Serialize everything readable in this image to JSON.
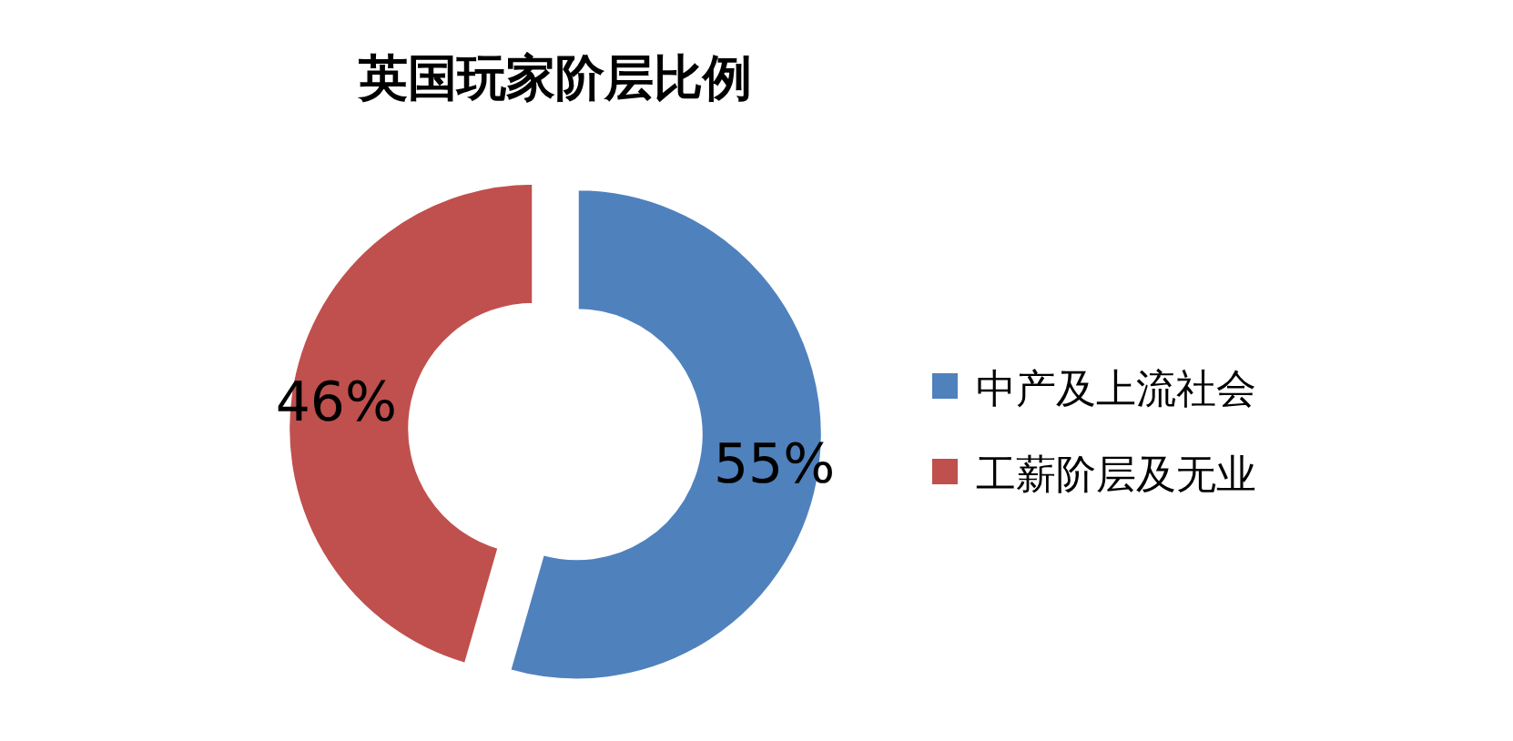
{
  "chart_data": {
    "type": "donut",
    "title": "英国玩家阶层比例",
    "categories": [
      "中产及上流社会",
      "工薪阶层及无业"
    ],
    "values": [
      55,
      46
    ],
    "colors": [
      "#4f81bd",
      "#c0504d"
    ],
    "value_labels": [
      "55%",
      "46%"
    ],
    "legend": "right"
  }
}
